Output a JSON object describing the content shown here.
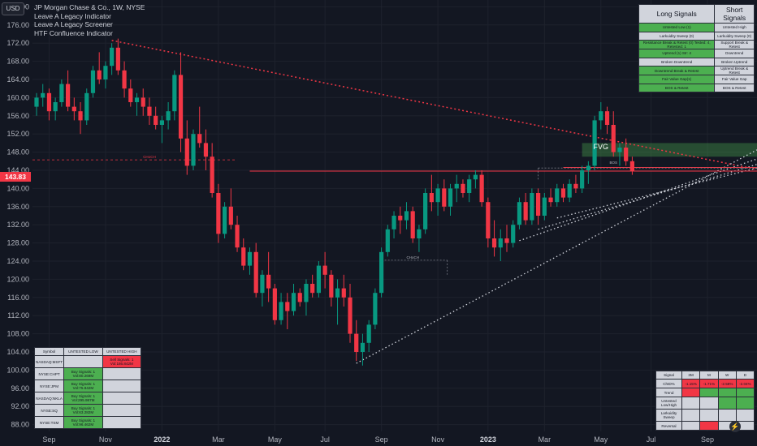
{
  "header": {
    "currency": "USD",
    "symbol_line": "JP Morgan Chase & Co., 1W, NYSE",
    "indicators": [
      "Leave A Legacy Indicator",
      "Leave A Legacy Screener",
      "HTF Confluence Indicator"
    ]
  },
  "current_price": "143.83",
  "annotations": {
    "fvg": "FVG",
    "choch_left": "CHoCH",
    "choch_mid": "CHoCH",
    "bos": "BOS"
  },
  "signals_table": {
    "long_header": "Long Signals",
    "short_header": "Short Signals",
    "rows": [
      {
        "long": "Untested Low (1)",
        "short": "Untested High"
      },
      {
        "long": "Larkuidity Sweep (0)",
        "short": "Larkuidity Sweep (0)"
      },
      {
        "long": "Resistance Break & Retest (0) Tested: 4, Retested: 1",
        "short": "Support Break & Retest"
      },
      {
        "long": "Uptrend (1) Str: 4",
        "short": "Downtrend"
      },
      {
        "long": "Broken Downtrend",
        "short": "Broken Uptrend"
      },
      {
        "long": "Downtrend Break & Retest",
        "short": "Uptrend Break & Retest"
      },
      {
        "long": "Fair Value Gap(1)",
        "short": "Fair Value Gap"
      },
      {
        "long": "BOS & Retest",
        "short": "BOS & Retest"
      }
    ],
    "long_green_rows": [
      0,
      2,
      3,
      5,
      6,
      7
    ]
  },
  "screener": {
    "headers": [
      "Symbol",
      "UNTESTED LOW",
      "UNTESTED HIGH"
    ],
    "rows": [
      {
        "symbol": "NASDAQ:MSFT",
        "low": "",
        "high": "Sell Signals: 1 Vol:186.842M",
        "low_color": "",
        "high_color": "r"
      },
      {
        "symbol": "NYSE:CHPT",
        "low": "Buy Signals: 1 Vol:80.269M",
        "high": "",
        "low_color": "g",
        "high_color": ""
      },
      {
        "symbol": "NYSE:JPM",
        "low": "Buy Signals: 1 Vol:75.842M",
        "high": "",
        "low_color": "g",
        "high_color": ""
      },
      {
        "symbol": "NASDAQ:NKLA",
        "low": "Buy Signals: 1 Vol:295.987M",
        "high": "",
        "low_color": "g",
        "high_color": ""
      },
      {
        "symbol": "NYSE:SQ",
        "low": "Buy Signals: 1 Vol:63.282M",
        "high": "",
        "low_color": "g",
        "high_color": ""
      },
      {
        "symbol": "NYSE:TSM",
        "low": "Buy Signals: 1 Vol:96.462M",
        "high": "",
        "low_color": "g",
        "high_color": ""
      }
    ]
  },
  "mtf_table": {
    "headers": [
      "Signal",
      "3M",
      "M",
      "W",
      "D"
    ],
    "rows": [
      {
        "label": "ChtD%",
        "cells": [
          "-1.15%",
          "-1.71%",
          "-2.58%",
          "-2.04%"
        ],
        "colors": [
          "r",
          "r",
          "r",
          "r"
        ]
      },
      {
        "label": "Trend",
        "cells": [
          "",
          "",
          "",
          ""
        ],
        "colors": [
          "r",
          "g",
          "g",
          "g"
        ]
      },
      {
        "label": "Untested Low/High",
        "cells": [
          "",
          "",
          "",
          ""
        ],
        "colors": [
          "",
          "",
          "g",
          "g"
        ]
      },
      {
        "label": "Larkuidity Sweep",
        "cells": [
          "",
          "",
          "",
          ""
        ],
        "colors": [
          "",
          "",
          "",
          ""
        ]
      },
      {
        "label": "Reversal",
        "cells": [
          "",
          "",
          "",
          ""
        ],
        "colors": [
          "",
          "r",
          "",
          ""
        ]
      }
    ]
  },
  "chart_data": {
    "type": "candlestick",
    "y_ticks": [
      "180.00",
      "176.00",
      "172.00",
      "168.00",
      "164.00",
      "160.00",
      "156.00",
      "152.00",
      "148.00",
      "144.00",
      "140.00",
      "136.00",
      "132.00",
      "128.00",
      "124.00",
      "120.00",
      "116.00",
      "112.00",
      "108.00",
      "104.00",
      "100.00",
      "96.00",
      "92.00",
      "88.00"
    ],
    "ylim": [
      86.5,
      181.5
    ],
    "x_labels": [
      {
        "label": "Sep",
        "week": 2,
        "bold": false
      },
      {
        "label": "Nov",
        "week": 11,
        "bold": false
      },
      {
        "label": "2022",
        "week": 20,
        "bold": true
      },
      {
        "label": "Mar",
        "week": 29,
        "bold": false
      },
      {
        "label": "May",
        "week": 38,
        "bold": false
      },
      {
        "label": "Jul",
        "week": 46,
        "bold": false
      },
      {
        "label": "Sep",
        "week": 55,
        "bold": false
      },
      {
        "label": "Nov",
        "week": 64,
        "bold": false
      },
      {
        "label": "2023",
        "week": 72,
        "bold": true
      },
      {
        "label": "Mar",
        "week": 81,
        "bold": false
      },
      {
        "label": "May",
        "week": 90,
        "bold": false
      },
      {
        "label": "Jul",
        "week": 98,
        "bold": false
      },
      {
        "label": "Sep",
        "week": 107,
        "bold": false
      }
    ],
    "candles": [
      [
        158,
        161,
        156,
        160
      ],
      [
        160,
        163,
        158,
        161
      ],
      [
        161,
        162,
        155,
        157
      ],
      [
        157,
        160,
        155,
        159
      ],
      [
        159,
        164,
        158,
        163
      ],
      [
        163,
        166,
        157,
        158
      ],
      [
        158,
        160,
        155,
        157
      ],
      [
        157,
        159,
        152,
        155
      ],
      [
        155,
        162,
        154,
        161
      ],
      [
        161,
        167,
        160,
        166
      ],
      [
        166,
        170,
        163,
        164
      ],
      [
        164,
        168,
        162,
        167
      ],
      [
        167,
        172,
        165,
        171
      ],
      [
        171,
        173,
        165,
        166
      ],
      [
        166,
        168,
        160,
        162
      ],
      [
        162,
        164,
        158,
        159
      ],
      [
        159,
        161,
        156,
        160
      ],
      [
        160,
        162,
        156,
        158
      ],
      [
        158,
        160,
        154,
        156
      ],
      [
        156,
        158,
        153,
        154
      ],
      [
        154,
        156,
        150,
        155
      ],
      [
        155,
        159,
        153,
        157
      ],
      [
        157,
        166,
        155,
        165
      ],
      [
        165,
        170,
        148,
        151
      ],
      [
        151,
        155,
        143,
        145
      ],
      [
        145,
        153,
        144,
        152
      ],
      [
        152,
        158,
        149,
        150
      ],
      [
        150,
        153,
        144,
        147
      ],
      [
        147,
        150,
        138,
        139
      ],
      [
        139,
        141,
        128,
        130
      ],
      [
        130,
        137,
        129,
        136
      ],
      [
        136,
        140,
        131,
        132
      ],
      [
        132,
        134,
        126,
        127
      ],
      [
        127,
        129,
        122,
        123
      ],
      [
        123,
        127,
        121,
        126
      ],
      [
        126,
        128,
        116,
        117
      ],
      [
        117,
        122,
        114,
        121
      ],
      [
        121,
        126,
        115,
        118
      ],
      [
        118,
        119,
        110,
        111
      ],
      [
        111,
        117,
        110,
        115
      ],
      [
        115,
        117,
        109,
        113
      ],
      [
        113,
        119,
        112,
        117
      ],
      [
        117,
        118,
        114,
        115
      ],
      [
        115,
        120,
        112,
        119
      ],
      [
        119,
        121,
        116,
        117
      ],
      [
        117,
        124,
        116,
        123
      ],
      [
        123,
        126,
        118,
        121
      ],
      [
        121,
        122,
        114,
        116
      ],
      [
        116,
        120,
        110,
        118
      ],
      [
        118,
        121,
        114,
        116
      ],
      [
        116,
        119,
        106,
        108
      ],
      [
        108,
        111,
        102,
        104
      ],
      [
        104,
        108,
        101,
        106
      ],
      [
        106,
        111,
        104,
        110
      ],
      [
        110,
        118,
        109,
        117
      ],
      [
        117,
        127,
        116,
        126
      ],
      [
        126,
        132,
        125,
        131
      ],
      [
        131,
        135,
        129,
        134
      ],
      [
        134,
        136,
        130,
        133
      ],
      [
        133,
        137,
        131,
        135
      ],
      [
        135,
        136,
        128,
        129
      ],
      [
        129,
        132,
        126,
        131
      ],
      [
        131,
        140,
        130,
        139
      ],
      [
        139,
        143,
        135,
        137
      ],
      [
        137,
        141,
        134,
        140
      ],
      [
        140,
        142,
        135,
        136
      ],
      [
        136,
        141,
        134,
        140
      ],
      [
        140,
        143,
        137,
        141
      ],
      [
        141,
        142,
        138,
        139
      ],
      [
        139,
        143,
        137,
        142
      ],
      [
        142,
        144,
        140,
        143
      ],
      [
        143,
        144,
        136,
        137
      ],
      [
        137,
        138,
        127,
        129
      ],
      [
        129,
        133,
        125,
        127
      ],
      [
        127,
        131,
        124,
        129
      ],
      [
        129,
        132,
        126,
        128
      ],
      [
        128,
        133,
        127,
        132
      ],
      [
        132,
        138,
        131,
        137
      ],
      [
        137,
        139,
        132,
        133
      ],
      [
        133,
        140,
        132,
        139
      ],
      [
        139,
        140,
        132,
        134
      ],
      [
        134,
        139,
        133,
        138
      ],
      [
        138,
        140,
        136,
        137
      ],
      [
        137,
        141,
        136,
        140
      ],
      [
        140,
        141,
        137,
        138
      ],
      [
        138,
        142,
        137,
        141
      ],
      [
        141,
        143,
        139,
        140
      ],
      [
        140,
        145,
        139,
        144
      ],
      [
        144,
        146,
        141,
        145
      ],
      [
        145,
        156,
        144,
        155
      ],
      [
        155,
        159,
        153,
        157
      ],
      [
        157,
        158,
        152,
        154
      ],
      [
        154,
        157,
        147,
        148
      ],
      [
        148,
        150,
        145,
        149
      ],
      [
        149,
        151,
        145,
        146
      ],
      [
        146,
        147,
        143,
        143.83
      ]
    ],
    "fvg_zone": [
      150,
      147
    ],
    "lines": {
      "resistance_level": 143.83,
      "bos_level": 144.5,
      "choch_left_level": 146.3,
      "choch_mid_level": 124.2
    }
  }
}
